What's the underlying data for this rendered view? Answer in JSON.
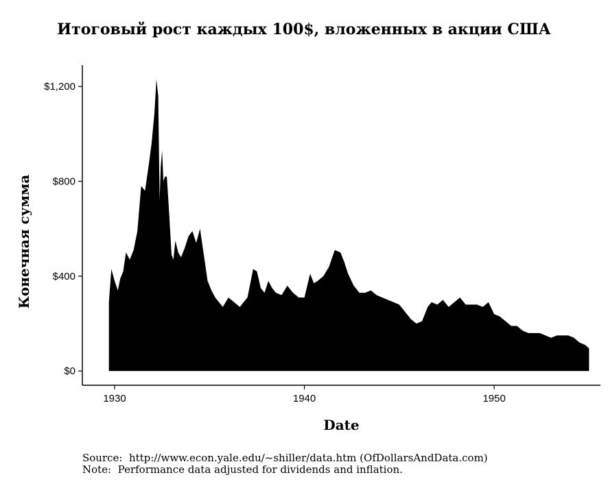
{
  "chart_data": {
    "type": "area",
    "title": "Итоговый рост каждых 100$, вложенных в акции США",
    "xlabel": "Date",
    "ylabel": "Конечная сумма",
    "xlim": [
      1928.3,
      1955.6
    ],
    "ylim": [
      -60,
      1290
    ],
    "x_ticks": [
      1930,
      1940,
      1950
    ],
    "x_tick_labels": [
      "1930",
      "1940",
      "1950"
    ],
    "y_ticks": [
      0,
      400,
      800,
      1200
    ],
    "y_tick_labels": [
      "$0",
      "$400",
      "$800",
      "$1,200"
    ],
    "fill_color": "#000000",
    "grid": false,
    "series": [
      {
        "x": [
          1929.7,
          1929.83,
          1930.0,
          1930.17,
          1930.3,
          1930.45,
          1930.6,
          1930.8,
          1931.0,
          1931.2,
          1931.4,
          1931.6,
          1931.8,
          1931.95,
          1932.1,
          1932.2,
          1932.3,
          1932.37,
          1932.43,
          1932.5,
          1932.57,
          1932.65,
          1932.75,
          1932.85,
          1933.0,
          1933.1,
          1933.2,
          1933.35,
          1933.5,
          1933.7,
          1933.9,
          1934.1,
          1934.3,
          1934.5,
          1934.7,
          1934.9,
          1935.1,
          1935.3,
          1935.5,
          1935.7,
          1936.0,
          1936.3,
          1936.6,
          1937.0,
          1937.3,
          1937.5,
          1937.7,
          1937.9,
          1938.1,
          1938.3,
          1938.5,
          1938.8,
          1939.1,
          1939.4,
          1939.7,
          1940.0,
          1940.3,
          1940.5,
          1940.7,
          1941.0,
          1941.3,
          1941.6,
          1941.9,
          1942.1,
          1942.3,
          1942.6,
          1942.9,
          1943.2,
          1943.5,
          1943.8,
          1944.1,
          1944.4,
          1944.7,
          1945.0,
          1945.3,
          1945.6,
          1945.9,
          1946.2,
          1946.5,
          1946.7,
          1947.0,
          1947.3,
          1947.6,
          1947.9,
          1948.2,
          1948.5,
          1948.8,
          1949.1,
          1949.4,
          1949.7,
          1950.0,
          1950.3,
          1950.6,
          1950.9,
          1951.2,
          1951.5,
          1951.8,
          1952.1,
          1952.4,
          1952.7,
          1953.0,
          1953.3,
          1953.6,
          1953.9,
          1954.2,
          1954.5,
          1954.8,
          1955.0
        ],
        "values": [
          290,
          430,
          380,
          340,
          390,
          420,
          500,
          470,
          510,
          590,
          780,
          760,
          870,
          960,
          1090,
          1230,
          1160,
          720,
          860,
          930,
          800,
          820,
          820,
          700,
          490,
          470,
          550,
          500,
          480,
          520,
          570,
          590,
          540,
          600,
          490,
          380,
          340,
          310,
          290,
          270,
          310,
          290,
          270,
          310,
          430,
          420,
          350,
          330,
          380,
          350,
          330,
          320,
          360,
          330,
          310,
          310,
          410,
          370,
          380,
          400,
          440,
          510,
          500,
          460,
          410,
          360,
          330,
          330,
          340,
          320,
          310,
          300,
          290,
          280,
          250,
          220,
          200,
          210,
          270,
          290,
          280,
          300,
          270,
          290,
          310,
          280,
          280,
          280,
          270,
          290,
          240,
          230,
          210,
          190,
          190,
          170,
          160,
          160,
          160,
          150,
          140,
          150,
          150,
          150,
          140,
          120,
          110,
          95
        ]
      }
    ]
  },
  "notes": {
    "source": "Source:  http://www.econ.yale.edu/~shiller/data.htm (OfDollarsAndData.com)",
    "note": "Note:  Performance data adjusted for dividends and inflation."
  }
}
